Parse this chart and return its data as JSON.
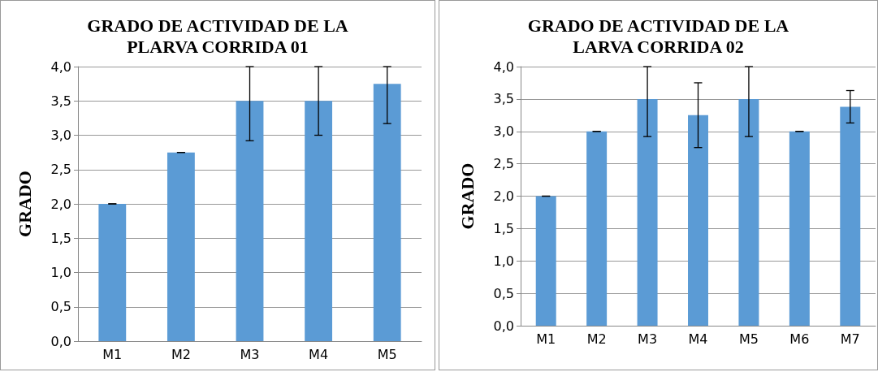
{
  "chart_data": [
    {
      "type": "bar",
      "title": "GRADO DE ACTIVIDAD DE LA\nPLARVA CORRIDA 01",
      "ylabel": "GRADO",
      "categories": [
        "M1",
        "M2",
        "M3",
        "M4",
        "M5"
      ],
      "color": "#5b9bd5",
      "values": [
        2.0,
        2.75,
        3.5,
        3.5,
        3.75
      ],
      "errors": [
        0,
        0,
        [
          2.92,
          4.0
        ],
        [
          3.0,
          4.0
        ],
        [
          3.17,
          4.0
        ]
      ],
      "ylim": [
        0,
        4
      ],
      "yticks": [
        {
          "value": 0,
          "label": "0,0"
        },
        {
          "value": 0.5,
          "label": "0,5"
        },
        {
          "value": 1,
          "label": "1,0"
        },
        {
          "value": 1.5,
          "label": "1,5"
        },
        {
          "value": 2,
          "label": "2,0"
        },
        {
          "value": 2.5,
          "label": "2,5"
        },
        {
          "value": 3,
          "label": "3,0"
        },
        {
          "value": 3.5,
          "label": "3,5"
        },
        {
          "value": 4,
          "label": "4,0"
        }
      ],
      "grid": "y"
    },
    {
      "type": "bar",
      "title": "GRADO DE ACTIVIDAD DE LA\nLARVA CORRIDA 02",
      "ylabel": "GRADO",
      "categories": [
        "M1",
        "M2",
        "M3",
        "M4",
        "M5",
        "M6",
        "M7"
      ],
      "color": "#5b9bd5",
      "values": [
        2.0,
        3.0,
        3.5,
        3.25,
        3.5,
        3.0,
        3.38
      ],
      "errors": [
        0,
        0,
        [
          2.92,
          4.0
        ],
        0.5,
        [
          2.92,
          4.0
        ],
        0,
        [
          3.13,
          3.63
        ]
      ],
      "ylim": [
        0,
        4
      ],
      "yticks": [
        {
          "value": 0,
          "label": "0,0"
        },
        {
          "value": 0.5,
          "label": "0,5"
        },
        {
          "value": 1,
          "label": "1,0"
        },
        {
          "value": 1.5,
          "label": "1,5"
        },
        {
          "value": 2,
          "label": "2,0"
        },
        {
          "value": 2.5,
          "label": "2,5"
        },
        {
          "value": 3,
          "label": "3,0"
        },
        {
          "value": 3.5,
          "label": "3,5"
        },
        {
          "value": 4,
          "label": "4,0"
        }
      ],
      "grid": "y"
    }
  ]
}
